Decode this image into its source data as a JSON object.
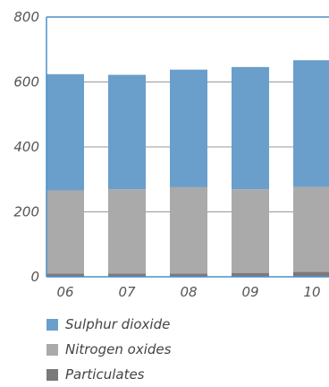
{
  "chart_data": {
    "type": "bar",
    "stacked": true,
    "categories": [
      "06",
      "07",
      "08",
      "09",
      "10"
    ],
    "series": [
      {
        "name": "Particulates",
        "values": [
          10,
          10,
          10,
          12,
          15
        ],
        "color": "#7a7a7c"
      },
      {
        "name": "Nitrogen oxides",
        "values": [
          256,
          260,
          266,
          258,
          262
        ],
        "color": "#aaaaaa"
      },
      {
        "name": "Sulphur dioxide",
        "values": [
          358,
          352,
          362,
          376,
          390
        ],
        "color": "#6a9fcb"
      }
    ],
    "yticks": [
      0,
      200,
      400,
      600,
      800
    ],
    "ylim": [
      0,
      800
    ],
    "grid": true,
    "legend_order": [
      "Sulphur dioxide",
      "Nitrogen oxides",
      "Particulates"
    ],
    "legend_position": "bottom",
    "axis_color": "#4a90c8",
    "grid_color": "#9a9a9a"
  }
}
